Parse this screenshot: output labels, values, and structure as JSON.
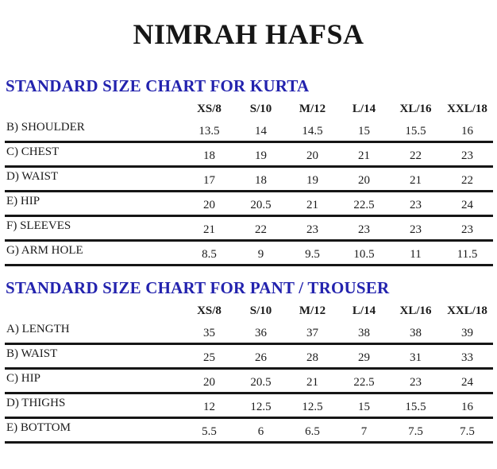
{
  "page": {
    "brand_title": "NIMRAH HAFSA",
    "background_color": "#ffffff",
    "heading_color": "#2323ae",
    "text_color": "#1b1b1b"
  },
  "kurta_chart": {
    "heading": "STANDARD SIZE CHART FOR KURTA",
    "columns": [
      "XS/8",
      "S/10",
      "M/12",
      "L/14",
      "XL/16",
      "XXL/18"
    ],
    "rows": [
      {
        "label": "B) SHOULDER",
        "values": [
          "13.5",
          "14",
          "14.5",
          "15",
          "15.5",
          "16"
        ]
      },
      {
        "label": "C) CHEST",
        "values": [
          "18",
          "19",
          "20",
          "21",
          "22",
          "23"
        ]
      },
      {
        "label": "D) WAIST",
        "values": [
          "17",
          "18",
          "19",
          "20",
          "21",
          "22"
        ]
      },
      {
        "label": "E) HIP",
        "values": [
          "20",
          "20.5",
          "21",
          "22.5",
          "23",
          "24"
        ]
      },
      {
        "label": "F) SLEEVES",
        "values": [
          "21",
          "22",
          "23",
          "23",
          "23",
          "23"
        ]
      },
      {
        "label": "G) ARM HOLE",
        "values": [
          "8.5",
          "9",
          "9.5",
          "10.5",
          "11",
          "11.5"
        ]
      }
    ]
  },
  "pant_chart": {
    "heading": "STANDARD SIZE CHART FOR PANT / TROUSER",
    "columns": [
      "XS/8",
      "S/10",
      "M/12",
      "L/14",
      "XL/16",
      "XXL/18"
    ],
    "rows": [
      {
        "label": "A) LENGTH",
        "values": [
          "35",
          "36",
          "37",
          "38",
          "38",
          "39"
        ]
      },
      {
        "label": "B) WAIST",
        "values": [
          "25",
          "26",
          "28",
          "29",
          "31",
          "33"
        ]
      },
      {
        "label": "C) HIP",
        "values": [
          "20",
          "20.5",
          "21",
          "22.5",
          "23",
          "24"
        ]
      },
      {
        "label": "D) THIGHS",
        "values": [
          "12",
          "12.5",
          "12.5",
          "15",
          "15.5",
          "16"
        ]
      },
      {
        "label": "E) BOTTOM",
        "values": [
          "5.5",
          "6",
          "6.5",
          "7",
          "7.5",
          "7.5"
        ]
      }
    ]
  }
}
